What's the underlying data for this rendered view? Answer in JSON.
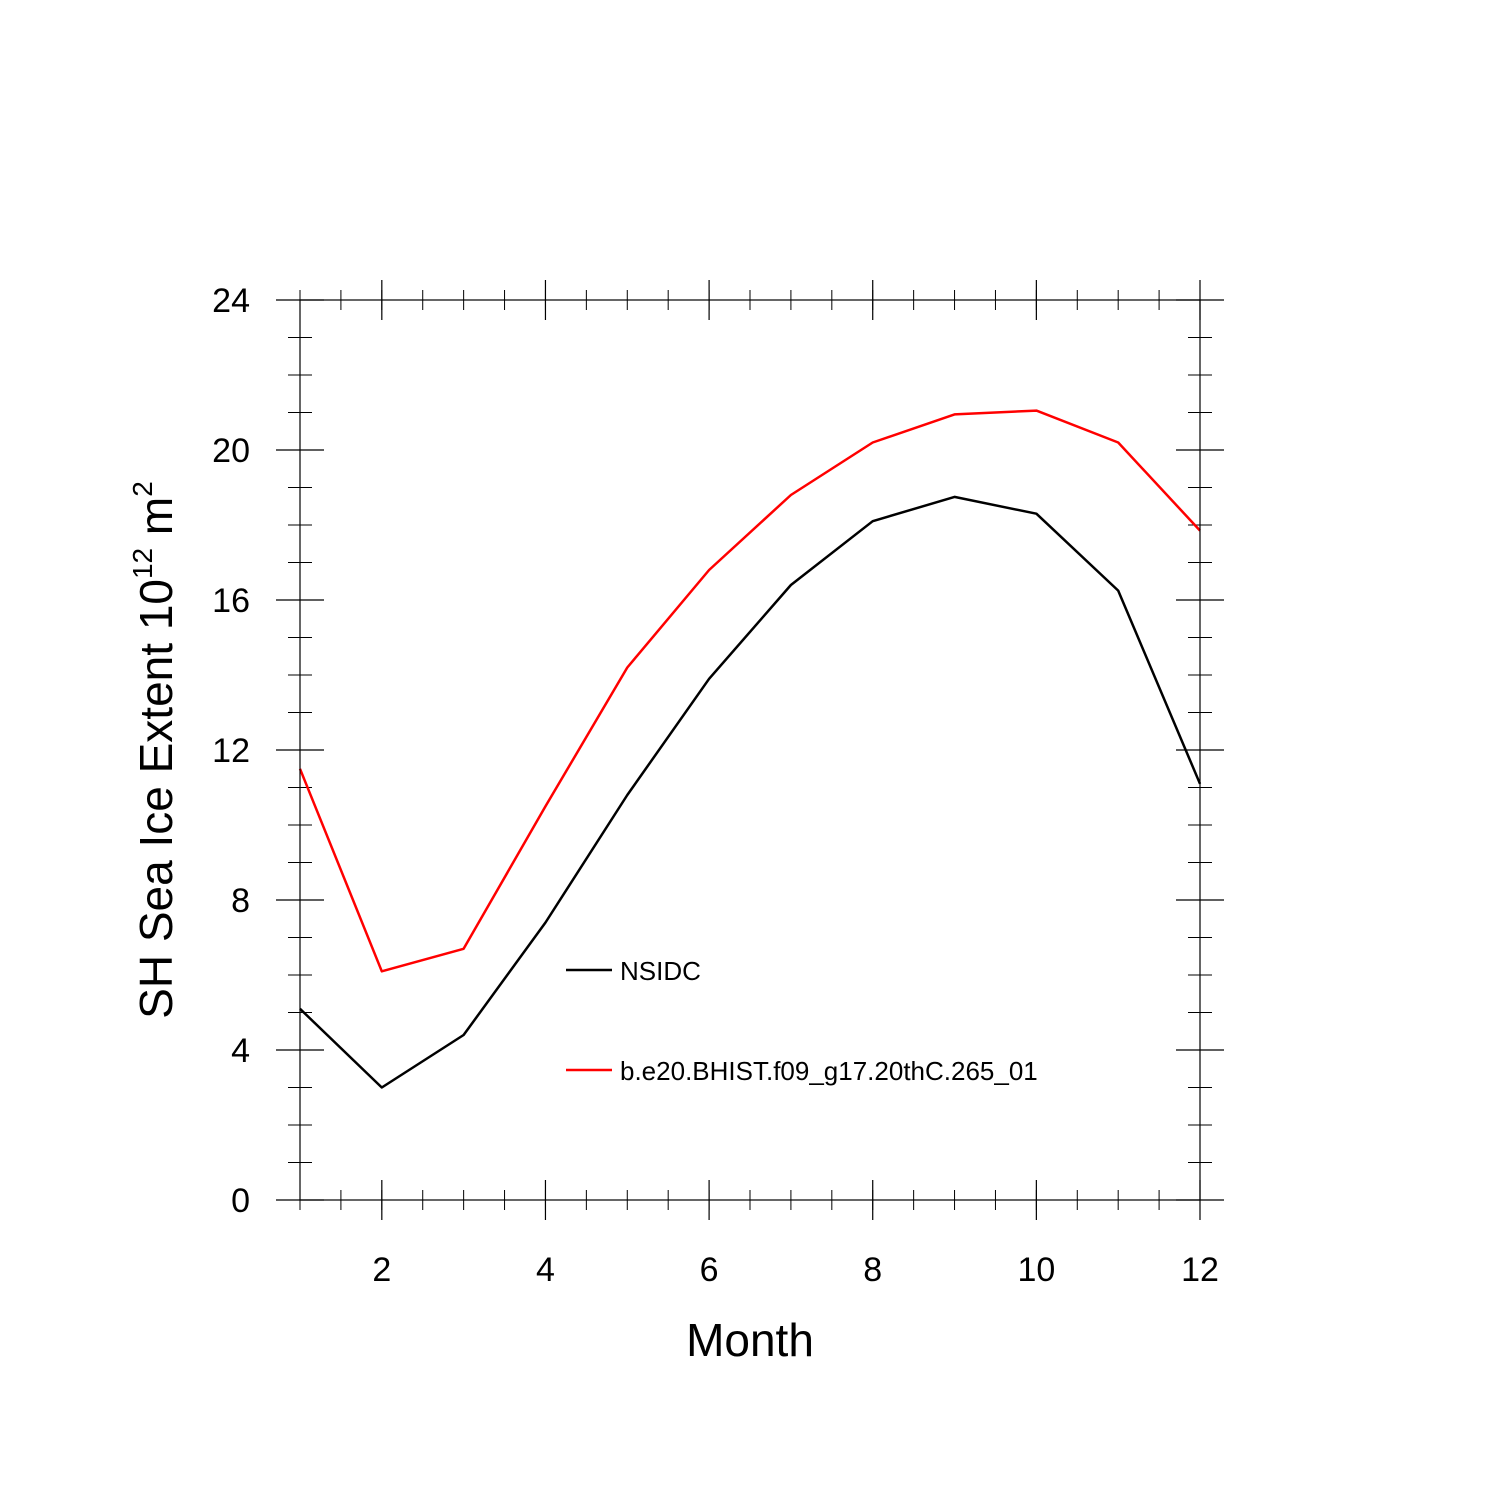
{
  "chart_data": {
    "type": "line",
    "title": "",
    "xlabel": "Month",
    "ylabel": {
      "prefix": "SH Sea Ice Extent 10",
      "exponent1": "12",
      "middle": " m",
      "exponent2": "2"
    },
    "xlim": [
      1,
      12
    ],
    "ylim": [
      0,
      24
    ],
    "xticks": [
      2,
      4,
      6,
      8,
      10,
      12
    ],
    "yticks": [
      0,
      4,
      8,
      12,
      16,
      20,
      24
    ],
    "x_minor_step": 0.5,
    "y_minor_step": 1,
    "grid": false,
    "legend_placement": "center",
    "series": [
      {
        "name": "NSIDC",
        "color": "#000000",
        "x": [
          1,
          2,
          3,
          4,
          5,
          6,
          7,
          8,
          9,
          10,
          11,
          12
        ],
        "y": [
          5.1,
          3.0,
          4.4,
          7.4,
          10.8,
          13.9,
          16.4,
          18.1,
          18.75,
          18.3,
          16.25,
          11.1
        ]
      },
      {
        "name": "b.e20.BHIST.f09_g17.20thC.265_01",
        "color": "#ff0000",
        "x": [
          1,
          2,
          3,
          4,
          5,
          6,
          7,
          8,
          9,
          10,
          11,
          12
        ],
        "y": [
          11.5,
          6.1,
          6.7,
          10.5,
          14.2,
          16.8,
          18.8,
          20.2,
          20.95,
          21.05,
          20.2,
          17.85
        ]
      }
    ]
  }
}
